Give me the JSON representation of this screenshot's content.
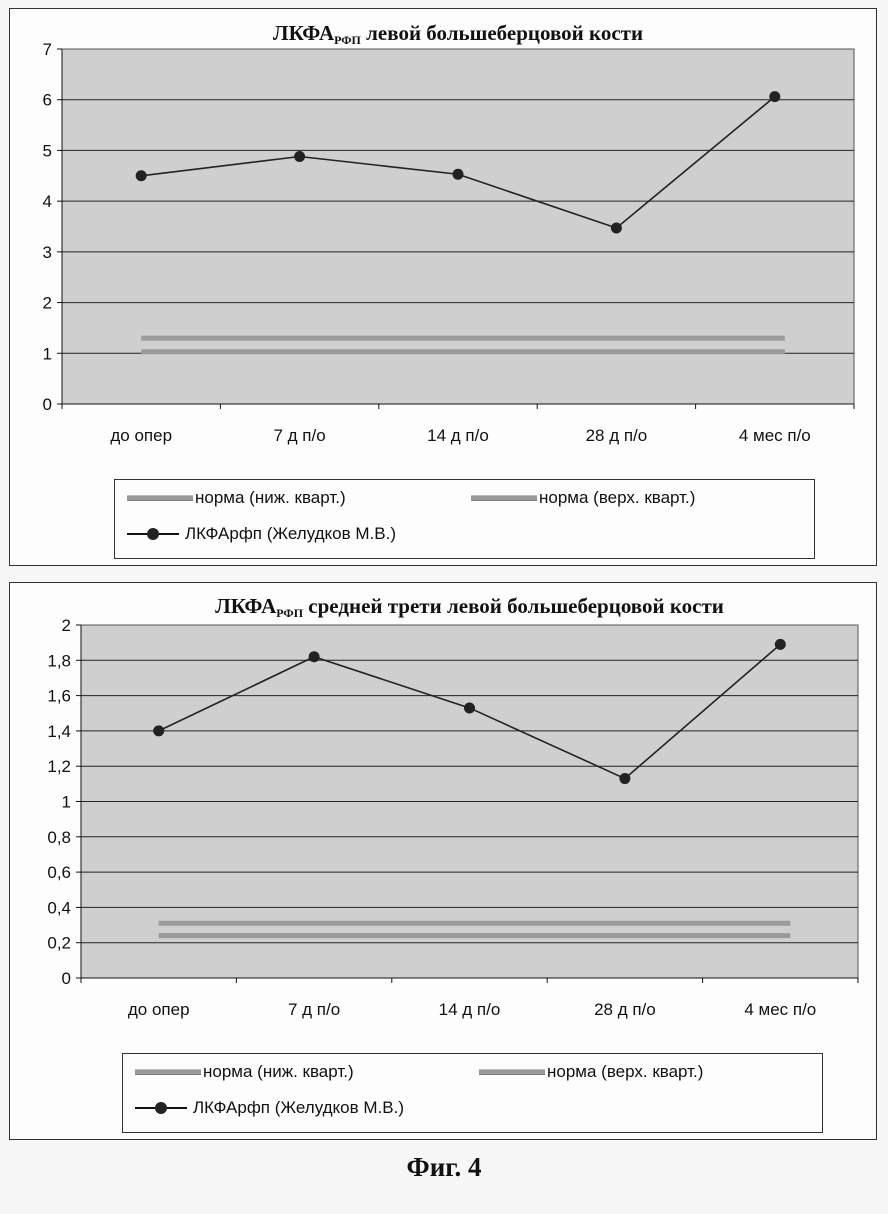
{
  "chart_data": [
    {
      "type": "line",
      "title": "ЛКФА",
      "title_subscript": "РФП",
      "title_rest": " левой большеберцовой кости",
      "categories": [
        "до опер",
        "7 д п/о",
        "14 д п/о",
        "28 д п/о",
        "4 мес п/о"
      ],
      "ylim": [
        0,
        7
      ],
      "yticks": [
        "0",
        "1",
        "2",
        "3",
        "4",
        "5",
        "6",
        "7"
      ],
      "grid": true,
      "legend_position": "bottom",
      "series": [
        {
          "name": "норма (ниж. кварт.)",
          "kind": "band",
          "values": [
            1.03,
            1.03,
            1.03,
            1.03,
            1.03
          ]
        },
        {
          "name": "норма (верх. кварт.)",
          "kind": "band",
          "values": [
            1.3,
            1.3,
            1.3,
            1.3,
            1.3
          ]
        },
        {
          "name": "ЛКФАрфп (Желудков М.В.)",
          "kind": "line",
          "values": [
            4.5,
            4.88,
            4.53,
            3.47,
            6.06
          ]
        }
      ]
    },
    {
      "type": "line",
      "title": "ЛКФА",
      "title_subscript": "РФП",
      "title_rest": " средней трети левой большеберцовой кости",
      "categories": [
        "до опер",
        "7 д п/о",
        "14 д п/о",
        "28 д п/о",
        "4 мес п/о"
      ],
      "ylim": [
        0,
        2
      ],
      "yticks": [
        "0",
        "0,2",
        "0,4",
        "0,6",
        "0,8",
        "1",
        "1,2",
        "1,4",
        "1,6",
        "1,8",
        "2"
      ],
      "grid": true,
      "legend_position": "bottom",
      "series": [
        {
          "name": "норма (ниж. кварт.)",
          "kind": "band",
          "values": [
            0.24,
            0.24,
            0.24,
            0.24,
            0.24
          ]
        },
        {
          "name": "норма (верх. кварт.)",
          "kind": "band",
          "values": [
            0.31,
            0.31,
            0.31,
            0.31,
            0.31
          ]
        },
        {
          "name": "ЛКФАрфп (Желудков М.В.)",
          "kind": "line",
          "values": [
            1.4,
            1.82,
            1.53,
            1.13,
            1.89
          ]
        }
      ]
    }
  ],
  "caption": "Фиг. 4",
  "colors": {
    "plot_bg": "#cfcfcf",
    "grid": "#222222",
    "band": "#9a9a9a",
    "line": "#222222",
    "marker": "#222222"
  }
}
